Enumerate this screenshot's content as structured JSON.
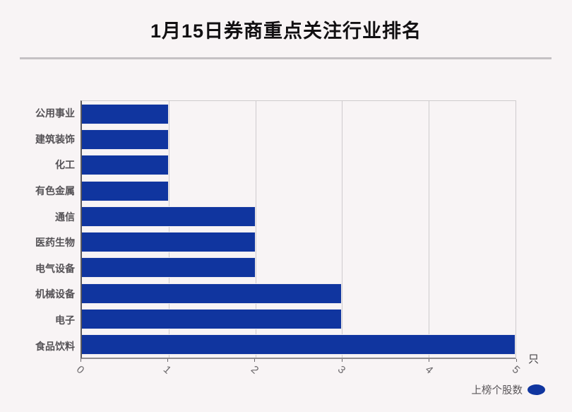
{
  "header": {
    "title": "1月15日券商重点关注行业排名"
  },
  "axis": {
    "unit": "只"
  },
  "legend": {
    "label": "上榜个股数",
    "marker_color": "#10359f",
    "position": "bottom-right"
  },
  "colors": {
    "background": "#f8f4f5",
    "bar": "#10359f",
    "grid": "#cecbcd",
    "divider": "#c5c1c4",
    "category_text": "#555256",
    "tick_text": "#6b686b",
    "title_text": "#121012"
  },
  "chart_data": {
    "type": "bar",
    "orientation": "horizontal",
    "title": "1月15日券商重点关注行业排名",
    "categories": [
      "公用事业",
      "建筑装饰",
      "化工",
      "有色金属",
      "通信",
      "医药生物",
      "电气设备",
      "机械设备",
      "电子",
      "食品饮料"
    ],
    "series": [
      {
        "name": "上榜个股数",
        "values": [
          1,
          1,
          1,
          1,
          2,
          2,
          2,
          3,
          3,
          5
        ]
      }
    ],
    "values": [
      1,
      1,
      1,
      1,
      2,
      2,
      2,
      3,
      3,
      5
    ],
    "x_unit": "只",
    "xlim": [
      0,
      5
    ],
    "xticks": [
      0,
      1,
      2,
      3,
      4,
      5
    ],
    "xtick_labels": [
      "0",
      "1",
      "2",
      "3",
      "4",
      "5"
    ],
    "xtick_rotation_deg": 42,
    "grid": true,
    "legend_position": "bottom-right",
    "bar_color": "#10359f"
  }
}
